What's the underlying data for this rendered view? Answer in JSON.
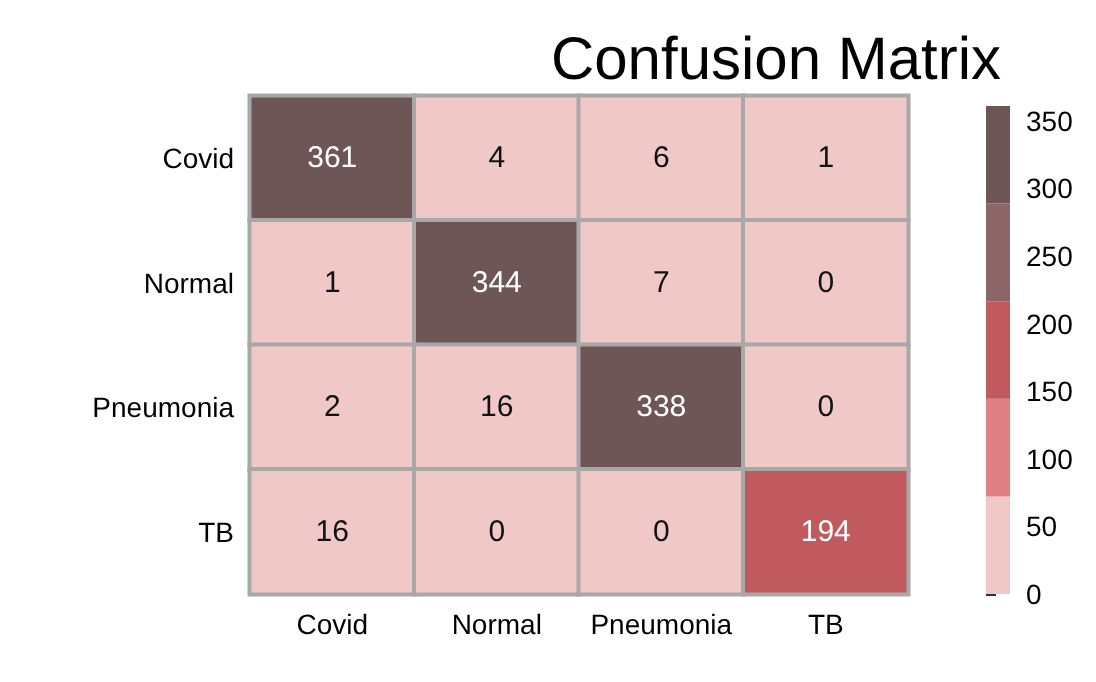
{
  "chart_data": {
    "type": "heatmap",
    "title": "Confusion Matrix",
    "categories": [
      "Covid",
      "Normal",
      "Pneumonia",
      "TB"
    ],
    "y_categories": [
      "Covid",
      "Normal",
      "Pneumonia",
      "TB"
    ],
    "cells": [
      [
        361,
        4,
        6,
        1
      ],
      [
        1,
        344,
        7,
        0
      ],
      [
        2,
        16,
        338,
        0
      ],
      [
        16,
        0,
        0,
        194
      ]
    ],
    "data_labels": true,
    "clim": [
      0,
      361
    ],
    "cticks": [
      0,
      50,
      100,
      150,
      200,
      250,
      300,
      350
    ],
    "colors": [
      "#f0c8c8",
      "#e08084",
      "#c05a5e",
      "#8c6666",
      "#6e5656"
    ]
  }
}
